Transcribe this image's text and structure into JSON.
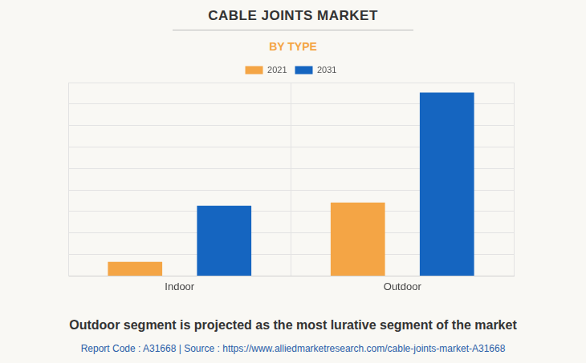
{
  "chart_data": {
    "type": "bar",
    "title": "CABLE JOINTS MARKET",
    "subtitle": "BY TYPE",
    "categories": [
      "Indoor",
      "Outdoor"
    ],
    "series": [
      {
        "name": "2021",
        "color": "#f4a545",
        "values": [
          0.66,
          3.42
        ]
      },
      {
        "name": "2031",
        "color": "#1565c0",
        "values": [
          3.27,
          8.53
        ]
      }
    ],
    "ylim": [
      0,
      9
    ],
    "yticks": [
      0,
      1,
      2,
      3,
      4,
      5,
      6,
      7,
      8,
      9
    ],
    "grid": true,
    "legend": "top",
    "tick_labels": "x",
    "caption": "Outdoor segment is projected as the most lurative segment of the market",
    "source": "Report Code : A31668  |  Source : https://www.alliedmarketresearch.com/cable-joints-market-A31668"
  }
}
